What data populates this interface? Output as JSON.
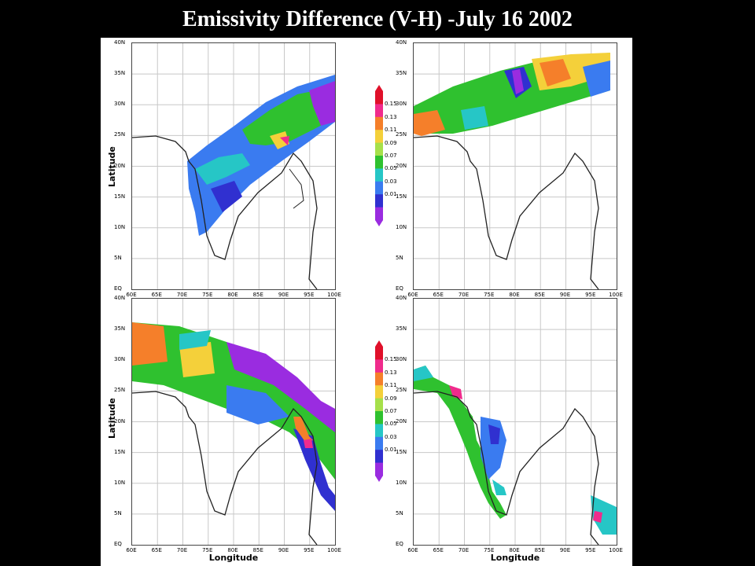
{
  "title": "Emissivity Difference (V-H) -July 16 2002",
  "axes": {
    "y_title": "Latitude",
    "x_title": "Longitude",
    "lat_ticks": [
      "40N",
      "35N",
      "30N",
      "25N",
      "20N",
      "15N",
      "10N",
      "5N",
      "EQ"
    ],
    "lon_ticks": [
      "60E",
      "65E",
      "70E",
      "75E",
      "80E",
      "85E",
      "90E",
      "95E",
      "100E"
    ]
  },
  "colorbar": {
    "labels": [
      "0.15",
      "0.13",
      "0.11",
      "0.09",
      "0.07",
      "0.05",
      "0.03",
      "0.01"
    ],
    "colors": [
      "#e0102a",
      "#f02b8c",
      "#f57f2a",
      "#f4d03a",
      "#a6e04a",
      "#2fc12f",
      "#26c6c6",
      "#3a7bf0",
      "#3030d0",
      "#9a2ce0"
    ]
  },
  "panels": [
    {
      "name": "top-left"
    },
    {
      "name": "top-right"
    },
    {
      "name": "bottom-left"
    },
    {
      "name": "bottom-right"
    }
  ]
}
